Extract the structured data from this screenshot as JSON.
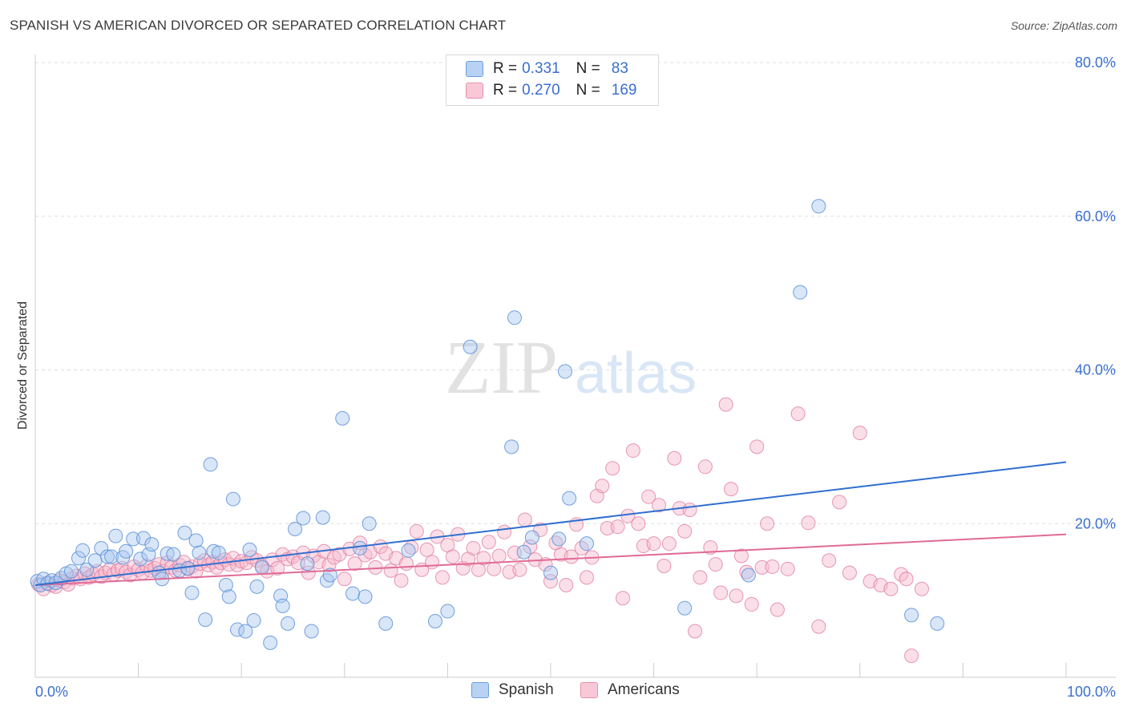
{
  "header": {
    "title": "SPANISH VS AMERICAN DIVORCED OR SEPARATED CORRELATION CHART",
    "source": "Source: ZipAtlas.com"
  },
  "watermark": {
    "zip": "ZIP",
    "atlas": "atlas"
  },
  "legend": {
    "rows": [
      {
        "r_label": "R =",
        "r_value": "0.331",
        "n_label": "N =",
        "n_value": "83",
        "color": "#a9c7f0"
      },
      {
        "r_label": "R =",
        "r_value": "0.270",
        "n_label": "N =",
        "n_value": "169",
        "color": "#f6b9cb"
      }
    ]
  },
  "bottom_legend": {
    "spanish": "Spanish",
    "americans": "Americans"
  },
  "colors": {
    "spanish_fill": "#a9c7f0",
    "spanish_stroke": "#5a8fd8",
    "spanish_line": "#2f6fd0",
    "americans_fill": "#f6b9cb",
    "americans_stroke": "#e07ea0",
    "americans_line": "#e06a96",
    "tick_label": "#3a6fd0",
    "grid": "#dddddd"
  },
  "chart_data": {
    "type": "scatter",
    "title": "SPANISH VS AMERICAN DIVORCED OR SEPARATED CORRELATION CHART",
    "xlabel": "",
    "ylabel": "Divorced or Separated",
    "xlim": [
      0,
      100
    ],
    "ylim": [
      0,
      80
    ],
    "x_tick_labels": [
      "0.0%",
      "100.0%"
    ],
    "y_ticks": [
      20,
      40,
      60,
      80
    ],
    "y_tick_labels": [
      "20.0%",
      "40.0%",
      "60.0%",
      "80.0%"
    ],
    "grid": "horizontal dashed",
    "legend_position": "top-center",
    "series": [
      {
        "name": "Spanish",
        "r": 0.331,
        "n": 83,
        "trend": {
          "x": [
            0,
            100
          ],
          "y": [
            12.0,
            28.0
          ]
        },
        "points": [
          [
            0.2,
            12.5
          ],
          [
            0.5,
            12.0
          ],
          [
            0.8,
            12.8
          ],
          [
            1.2,
            12.2
          ],
          [
            1.6,
            12.6
          ],
          [
            2.0,
            12.3
          ],
          [
            2.5,
            12.9
          ],
          [
            3.0,
            13.5
          ],
          [
            3.5,
            13.8
          ],
          [
            4.2,
            15.5
          ],
          [
            4.6,
            16.5
          ],
          [
            5.0,
            14.0
          ],
          [
            5.8,
            15.2
          ],
          [
            6.4,
            16.8
          ],
          [
            7.0,
            15.7
          ],
          [
            7.4,
            15.7
          ],
          [
            7.8,
            18.4
          ],
          [
            8.5,
            15.6
          ],
          [
            8.8,
            16.4
          ],
          [
            9.5,
            18.0
          ],
          [
            10.2,
            15.4
          ],
          [
            10.5,
            18.1
          ],
          [
            11.0,
            16.0
          ],
          [
            11.3,
            17.3
          ],
          [
            12.0,
            13.6
          ],
          [
            12.3,
            12.8
          ],
          [
            12.8,
            16.1
          ],
          [
            13.4,
            16.0
          ],
          [
            14.0,
            13.9
          ],
          [
            14.5,
            18.8
          ],
          [
            14.8,
            14.2
          ],
          [
            15.2,
            11.0
          ],
          [
            15.6,
            17.8
          ],
          [
            15.9,
            16.2
          ],
          [
            16.5,
            7.5
          ],
          [
            17.0,
            27.7
          ],
          [
            17.3,
            16.4
          ],
          [
            17.8,
            16.2
          ],
          [
            18.5,
            12.0
          ],
          [
            18.8,
            10.5
          ],
          [
            19.2,
            23.2
          ],
          [
            19.6,
            6.2
          ],
          [
            20.4,
            6.0
          ],
          [
            20.8,
            16.6
          ],
          [
            21.2,
            7.4
          ],
          [
            21.5,
            11.8
          ],
          [
            22.0,
            14.3
          ],
          [
            22.8,
            4.5
          ],
          [
            23.8,
            10.6
          ],
          [
            24.0,
            9.3
          ],
          [
            24.5,
            7.0
          ],
          [
            25.2,
            19.3
          ],
          [
            26.0,
            20.7
          ],
          [
            26.4,
            14.8
          ],
          [
            26.8,
            6.0
          ],
          [
            27.9,
            20.8
          ],
          [
            28.3,
            12.6
          ],
          [
            28.6,
            13.3
          ],
          [
            29.8,
            33.7
          ],
          [
            30.8,
            10.9
          ],
          [
            31.5,
            16.8
          ],
          [
            32.0,
            10.5
          ],
          [
            32.4,
            20.0
          ],
          [
            34.0,
            7.0
          ],
          [
            36.2,
            16.5
          ],
          [
            38.8,
            7.3
          ],
          [
            40.0,
            8.6
          ],
          [
            42.2,
            43.0
          ],
          [
            46.2,
            30.0
          ],
          [
            46.5,
            46.8
          ],
          [
            47.4,
            16.3
          ],
          [
            48.2,
            18.2
          ],
          [
            50.0,
            13.6
          ],
          [
            50.8,
            18.0
          ],
          [
            51.4,
            39.8
          ],
          [
            51.8,
            23.3
          ],
          [
            53.5,
            17.4
          ],
          [
            63.0,
            9.0
          ],
          [
            69.2,
            13.3
          ],
          [
            74.2,
            50.1
          ],
          [
            76.0,
            61.3
          ],
          [
            85.0,
            8.1
          ],
          [
            87.5,
            7.0
          ]
        ]
      },
      {
        "name": "Americans",
        "r": 0.27,
        "n": 169,
        "trend": {
          "x": [
            0,
            100
          ],
          "y": [
            12.0,
            18.6
          ]
        },
        "points": [
          [
            0.3,
            12.1
          ],
          [
            0.8,
            11.5
          ],
          [
            1.2,
            12.3
          ],
          [
            1.6,
            12.0
          ],
          [
            2.0,
            11.8
          ],
          [
            2.4,
            12.6
          ],
          [
            2.8,
            12.4
          ],
          [
            3.2,
            12.1
          ],
          [
            3.6,
            12.9
          ],
          [
            4.0,
            13.2
          ],
          [
            4.4,
            12.8
          ],
          [
            4.8,
            13.5
          ],
          [
            5.2,
            13.0
          ],
          [
            5.6,
            13.4
          ],
          [
            6.0,
            13.8
          ],
          [
            6.4,
            13.1
          ],
          [
            6.8,
            13.6
          ],
          [
            7.2,
            14.0
          ],
          [
            7.6,
            13.4
          ],
          [
            8.0,
            13.9
          ],
          [
            8.4,
            14.2
          ],
          [
            8.8,
            13.7
          ],
          [
            9.2,
            13.3
          ],
          [
            9.6,
            14.4
          ],
          [
            10.0,
            14.0
          ],
          [
            10.4,
            13.6
          ],
          [
            10.8,
            14.5
          ],
          [
            11.2,
            13.9
          ],
          [
            11.6,
            14.2
          ],
          [
            12.0,
            14.7
          ],
          [
            12.4,
            13.8
          ],
          [
            12.8,
            14.9
          ],
          [
            13.2,
            14.3
          ],
          [
            13.6,
            13.9
          ],
          [
            14.0,
            14.6
          ],
          [
            14.4,
            15.0
          ],
          [
            14.8,
            14.1
          ],
          [
            15.2,
            14.4
          ],
          [
            15.6,
            13.8
          ],
          [
            16.0,
            14.8
          ],
          [
            16.4,
            15.2
          ],
          [
            16.8,
            14.6
          ],
          [
            17.2,
            15.0
          ],
          [
            17.6,
            14.3
          ],
          [
            18.0,
            14.9
          ],
          [
            18.4,
            15.3
          ],
          [
            18.8,
            14.7
          ],
          [
            19.2,
            15.5
          ],
          [
            19.6,
            14.6
          ],
          [
            20.0,
            15.1
          ],
          [
            20.5,
            14.9
          ],
          [
            21.0,
            15.6
          ],
          [
            21.5,
            15.2
          ],
          [
            22.0,
            14.5
          ],
          [
            22.5,
            13.8
          ],
          [
            23.0,
            15.3
          ],
          [
            23.5,
            14.2
          ],
          [
            24.0,
            16.0
          ],
          [
            24.5,
            15.4
          ],
          [
            25.0,
            15.7
          ],
          [
            25.5,
            14.9
          ],
          [
            26.0,
            16.2
          ],
          [
            26.5,
            13.6
          ],
          [
            27.0,
            15.8
          ],
          [
            27.5,
            15.0
          ],
          [
            28.0,
            16.4
          ],
          [
            28.5,
            14.6
          ],
          [
            29.0,
            15.6
          ],
          [
            29.5,
            16.0
          ],
          [
            30.0,
            12.8
          ],
          [
            30.5,
            16.7
          ],
          [
            31.0,
            14.8
          ],
          [
            31.5,
            17.5
          ],
          [
            32.0,
            15.9
          ],
          [
            32.5,
            16.3
          ],
          [
            33.0,
            14.3
          ],
          [
            33.5,
            17.0
          ],
          [
            34.0,
            16.1
          ],
          [
            34.5,
            13.9
          ],
          [
            35.0,
            15.5
          ],
          [
            35.5,
            12.6
          ],
          [
            36.0,
            14.8
          ],
          [
            36.5,
            16.9
          ],
          [
            37.0,
            19.0
          ],
          [
            37.5,
            14.0
          ],
          [
            38.0,
            16.6
          ],
          [
            38.5,
            15.0
          ],
          [
            39.0,
            18.3
          ],
          [
            39.5,
            13.0
          ],
          [
            40.0,
            17.2
          ],
          [
            40.5,
            15.7
          ],
          [
            41.0,
            18.6
          ],
          [
            41.5,
            14.2
          ],
          [
            42.0,
            15.4
          ],
          [
            42.5,
            16.8
          ],
          [
            43.0,
            14.0
          ],
          [
            43.5,
            15.5
          ],
          [
            44.0,
            17.6
          ],
          [
            44.5,
            14.1
          ],
          [
            45.0,
            15.8
          ],
          [
            45.5,
            18.9
          ],
          [
            46.0,
            13.7
          ],
          [
            46.5,
            16.2
          ],
          [
            47.0,
            14.0
          ],
          [
            47.5,
            20.5
          ],
          [
            48.0,
            17.0
          ],
          [
            48.5,
            15.3
          ],
          [
            49.0,
            19.2
          ],
          [
            49.5,
            14.7
          ],
          [
            50.0,
            12.5
          ],
          [
            50.5,
            17.5
          ],
          [
            51.0,
            16.0
          ],
          [
            51.5,
            12.0
          ],
          [
            52.0,
            15.7
          ],
          [
            52.5,
            19.9
          ],
          [
            53.0,
            16.8
          ],
          [
            53.5,
            13.0
          ],
          [
            54.0,
            15.6
          ],
          [
            54.5,
            23.6
          ],
          [
            55.0,
            24.9
          ],
          [
            55.5,
            19.4
          ],
          [
            56.0,
            27.2
          ],
          [
            56.5,
            19.6
          ],
          [
            57.0,
            10.3
          ],
          [
            57.5,
            21.0
          ],
          [
            58.0,
            29.5
          ],
          [
            58.5,
            20.0
          ],
          [
            59.0,
            17.1
          ],
          [
            59.5,
            23.5
          ],
          [
            60.0,
            17.4
          ],
          [
            60.5,
            22.4
          ],
          [
            61.0,
            14.5
          ],
          [
            61.5,
            17.4
          ],
          [
            62.0,
            28.5
          ],
          [
            62.5,
            22.0
          ],
          [
            63.0,
            19.0
          ],
          [
            63.5,
            21.8
          ],
          [
            64.0,
            6.0
          ],
          [
            64.5,
            13.0
          ],
          [
            65.0,
            27.4
          ],
          [
            65.5,
            16.9
          ],
          [
            66.0,
            14.7
          ],
          [
            66.5,
            11.0
          ],
          [
            67.0,
            35.5
          ],
          [
            67.5,
            24.5
          ],
          [
            68.0,
            10.6
          ],
          [
            68.5,
            15.8
          ],
          [
            69.0,
            13.7
          ],
          [
            69.5,
            9.5
          ],
          [
            70.0,
            30.0
          ],
          [
            70.5,
            14.3
          ],
          [
            71.0,
            20.0
          ],
          [
            71.5,
            14.4
          ],
          [
            72.0,
            8.8
          ],
          [
            73.0,
            14.1
          ],
          [
            74.0,
            34.3
          ],
          [
            75.0,
            20.1
          ],
          [
            76.0,
            6.6
          ],
          [
            77.0,
            15.2
          ],
          [
            78.0,
            22.8
          ],
          [
            79.0,
            13.6
          ],
          [
            80.0,
            31.8
          ],
          [
            81.0,
            12.5
          ],
          [
            82.0,
            12.0
          ],
          [
            83.0,
            11.5
          ],
          [
            84.0,
            13.4
          ],
          [
            84.5,
            12.8
          ],
          [
            85.0,
            2.8
          ],
          [
            86.0,
            11.5
          ]
        ]
      }
    ]
  }
}
